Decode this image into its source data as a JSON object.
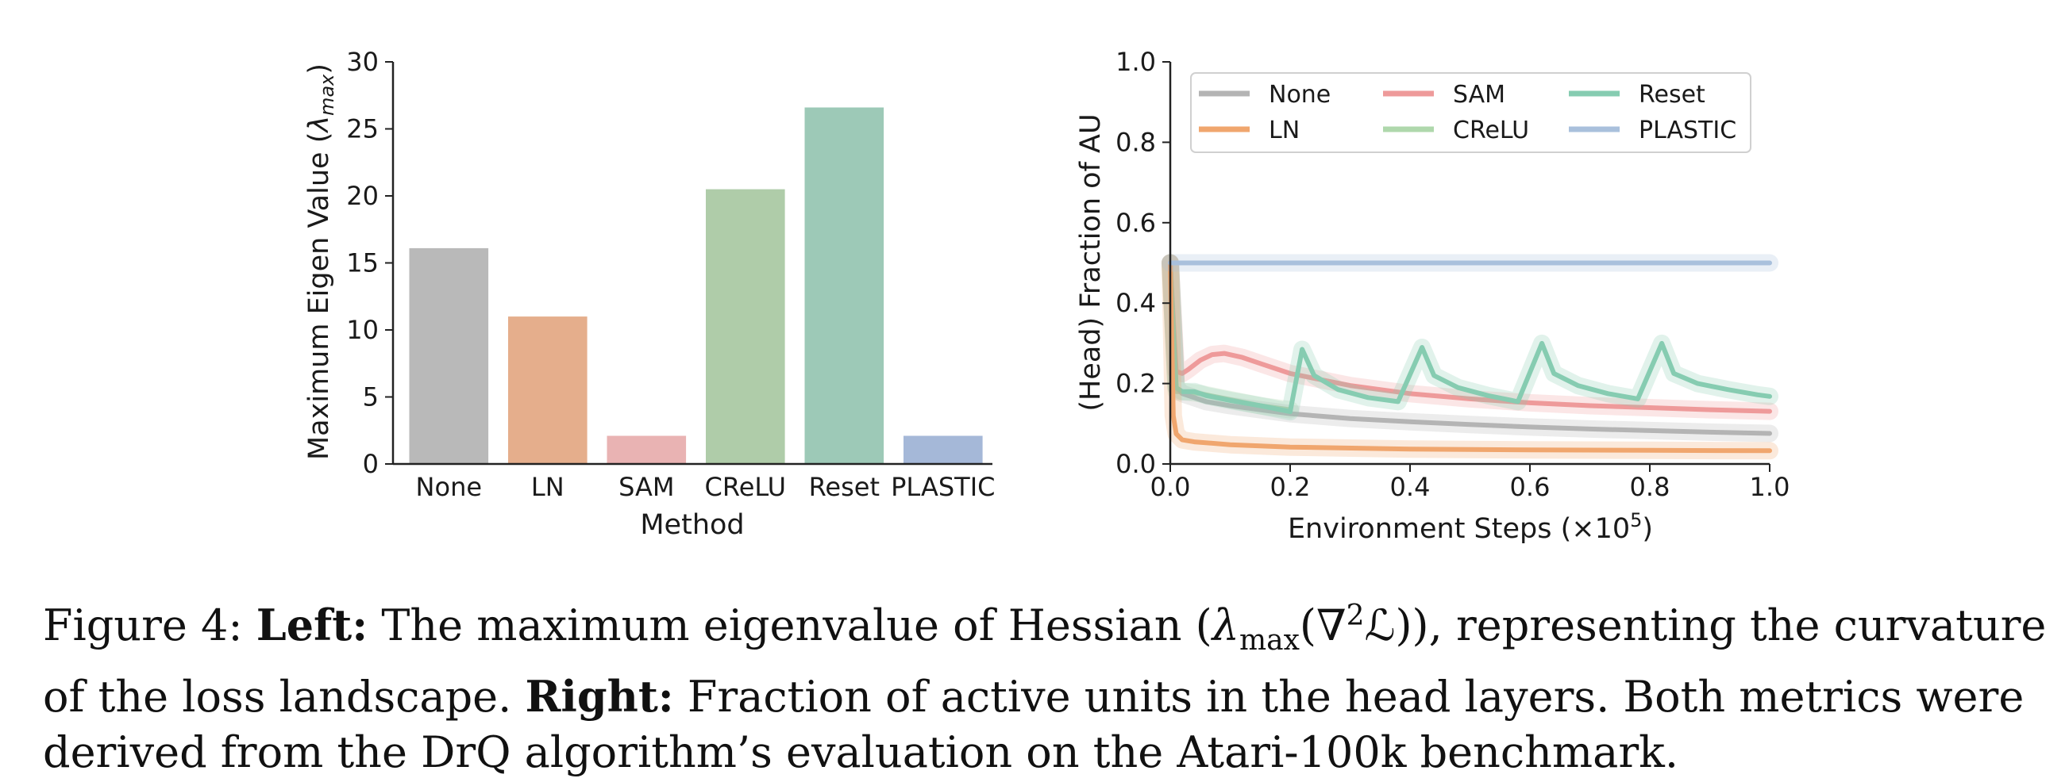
{
  "chart_data": [
    {
      "type": "bar",
      "categories": [
        "None",
        "LN",
        "SAM",
        "CReLU",
        "Reset",
        "PLASTIC"
      ],
      "values": [
        16.1,
        11.0,
        2.1,
        20.5,
        26.6,
        2.1
      ],
      "colors": [
        "#b9b9b9",
        "#e5ae8c",
        "#e9b3b3",
        "#afcca9",
        "#9dc9b7",
        "#a5b8d8"
      ],
      "xlabel": "Method",
      "ylabel_prefix": "Maximum Eigen Value (",
      "ylabel_symbol": "λ",
      "ylabel_subscript": "max",
      "ylabel_suffix": ")",
      "ylim": [
        0,
        30
      ],
      "yticks": [
        "0",
        "5",
        "10",
        "15",
        "20",
        "25",
        "30"
      ],
      "grid": false
    },
    {
      "type": "line",
      "xlabel_prefix": "Environment Steps (×10",
      "xlabel_superscript": "5",
      "xlabel_suffix": ")",
      "ylabel": "(Head) Fraction of AU",
      "xlim": [
        0,
        1.0
      ],
      "ylim": [
        0,
        1.0
      ],
      "xticks": [
        "0.0",
        "0.2",
        "0.4",
        "0.6",
        "0.8",
        "1.0"
      ],
      "yticks": [
        "0.0",
        "0.2",
        "0.4",
        "0.6",
        "0.8",
        "1.0"
      ],
      "legend_position": "top",
      "grid": false,
      "series": [
        {
          "name": "None",
          "color": "#b4b4b4",
          "x": [
            0.0,
            0.01,
            0.02,
            0.04,
            0.06,
            0.1,
            0.15,
            0.2,
            0.3,
            0.4,
            0.5,
            0.6,
            0.7,
            0.8,
            0.9,
            1.0
          ],
          "y": [
            0.5,
            0.19,
            0.175,
            0.165,
            0.155,
            0.145,
            0.135,
            0.125,
            0.113,
            0.105,
            0.098,
            0.092,
            0.087,
            0.083,
            0.079,
            0.076
          ]
        },
        {
          "name": "LN",
          "color": "#f0a66e",
          "x": [
            0.0,
            0.005,
            0.01,
            0.02,
            0.04,
            0.1,
            0.2,
            0.4,
            0.6,
            0.8,
            1.0
          ],
          "y": [
            0.5,
            0.12,
            0.075,
            0.06,
            0.055,
            0.048,
            0.042,
            0.037,
            0.035,
            0.034,
            0.033
          ]
        },
        {
          "name": "SAM",
          "color": "#ee9a9a",
          "x": [
            0.0,
            0.01,
            0.02,
            0.03,
            0.05,
            0.07,
            0.09,
            0.12,
            0.15,
            0.2,
            0.3,
            0.4,
            0.5,
            0.6,
            0.7,
            0.8,
            0.9,
            1.0
          ],
          "y": [
            0.5,
            0.23,
            0.225,
            0.235,
            0.258,
            0.272,
            0.275,
            0.265,
            0.25,
            0.225,
            0.195,
            0.175,
            0.162,
            0.152,
            0.145,
            0.14,
            0.135,
            0.131
          ]
        },
        {
          "name": "CReLU",
          "color": "#afd8ac",
          "x": [
            0.0,
            0.01,
            0.02,
            0.05,
            0.1,
            0.15,
            0.2
          ],
          "y": [
            0.5,
            0.18,
            0.18,
            0.175,
            0.16,
            0.145,
            0.135
          ]
        },
        {
          "name": "Reset",
          "color": "#86ccb1",
          "x": [
            0.0,
            0.01,
            0.02,
            0.04,
            0.06,
            0.1,
            0.15,
            0.2,
            0.22,
            0.24,
            0.28,
            0.33,
            0.38,
            0.42,
            0.44,
            0.48,
            0.53,
            0.58,
            0.62,
            0.64,
            0.68,
            0.73,
            0.78,
            0.82,
            0.84,
            0.88,
            0.93,
            0.98,
            1.0
          ],
          "y": [
            0.5,
            0.19,
            0.18,
            0.18,
            0.17,
            0.158,
            0.145,
            0.13,
            0.285,
            0.22,
            0.185,
            0.165,
            0.155,
            0.29,
            0.22,
            0.19,
            0.17,
            0.155,
            0.3,
            0.225,
            0.195,
            0.175,
            0.162,
            0.3,
            0.225,
            0.2,
            0.185,
            0.172,
            0.168
          ]
        },
        {
          "name": "PLASTIC",
          "color": "#a9c0dc",
          "x": [
            0.0,
            1.0
          ],
          "y": [
            0.5,
            0.5
          ]
        }
      ]
    }
  ],
  "caption": {
    "label": "Figure 4: ",
    "left_bold": "Left:",
    "left_text_1": " The maximum eigenvalue of Hessian (",
    "lambda": "λ",
    "max_sub": "max",
    "nabla": "(∇",
    "sq_sup": "2",
    "loss_symbol": "ℒ",
    "left_text_2": ")), representing the curvature of the loss landscape. ",
    "right_bold": "Right:",
    "right_text": " Fraction of active units in the head layers. Both metrics were derived from the DrQ algorithm’s evaluation on the Atari-100k benchmark."
  }
}
